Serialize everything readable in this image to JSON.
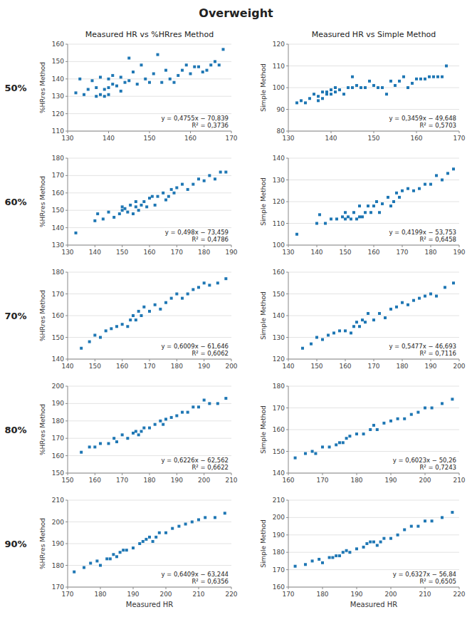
{
  "title": "Overweight",
  "row_labels": [
    "50%",
    "60%",
    "70%",
    "80%",
    "90%"
  ],
  "col_titles": [
    "Measured HR vs %HRres Method",
    "Measured HR vs Simple Method"
  ],
  "chart_data": [
    {
      "type": "scatter",
      "ylabel": "%HRres Method",
      "grid": true,
      "xlim": [
        130,
        170
      ],
      "ylim": [
        110,
        160
      ],
      "xticks": [
        130,
        140,
        150,
        160,
        170
      ],
      "yticks": [
        110,
        120,
        130,
        140,
        150,
        160
      ],
      "annotations": [
        "y = 0,4755x − 70,839",
        "R² = 0,3736"
      ],
      "slope": 0.4755,
      "intercept": -70.839,
      "x": [
        132,
        133,
        134,
        135,
        136,
        137,
        137,
        138,
        138,
        139,
        139,
        140,
        140,
        140,
        141,
        141,
        142,
        143,
        143,
        144,
        145,
        145,
        146,
        147,
        148,
        149,
        150,
        151,
        152,
        153,
        154,
        155,
        156,
        157,
        158,
        159,
        160,
        161,
        162,
        163,
        164,
        165,
        166,
        167,
        168
      ],
      "values": [
        132,
        140,
        131,
        134,
        139,
        130,
        135,
        131,
        141,
        134,
        130,
        131,
        135,
        140,
        137,
        142,
        136,
        133,
        141,
        138,
        139,
        152,
        144,
        137,
        148,
        140,
        138,
        143,
        154,
        138,
        145,
        140,
        138,
        142,
        145,
        148,
        143,
        147,
        147,
        144,
        145,
        148,
        150,
        148,
        157
      ]
    },
    {
      "type": "scatter",
      "ylabel": "Simple Method",
      "grid": true,
      "xlim": [
        130,
        170
      ],
      "ylim": [
        80,
        120
      ],
      "xticks": [
        130,
        140,
        150,
        160,
        170
      ],
      "yticks": [
        80,
        90,
        100,
        110,
        120
      ],
      "annotations": [
        "y = 0,3459x − 49,648",
        "R² = 0,5703"
      ],
      "slope": 0.3459,
      "intercept": -49.648,
      "x": [
        132,
        133,
        134,
        135,
        136,
        137,
        137,
        138,
        138,
        139,
        139,
        140,
        140,
        141,
        141,
        142,
        143,
        144,
        145,
        145,
        146,
        147,
        148,
        149,
        150,
        151,
        152,
        153,
        154,
        155,
        156,
        157,
        158,
        159,
        160,
        161,
        162,
        163,
        164,
        165,
        166,
        167
      ],
      "values": [
        93,
        94,
        93,
        95,
        97,
        94,
        96,
        95,
        98,
        98,
        97,
        97,
        99,
        98,
        100,
        99,
        97,
        100,
        100,
        105,
        101,
        100,
        100,
        103,
        101,
        100,
        100,
        97,
        103,
        101,
        103,
        105,
        100,
        102,
        104,
        104,
        104,
        105,
        105,
        105,
        105,
        110
      ]
    },
    {
      "type": "scatter",
      "ylabel": "%HRres Method",
      "grid": true,
      "xlim": [
        130,
        190
      ],
      "ylim": [
        130,
        180
      ],
      "xticks": [
        130,
        140,
        150,
        160,
        170,
        180,
        190
      ],
      "yticks": [
        130,
        140,
        150,
        160,
        170,
        180
      ],
      "annotations": [
        "y = 0,498x − 73,459",
        "R² = 0,4786"
      ],
      "slope": 0.498,
      "intercept": -73.459,
      "x": [
        133,
        140,
        141,
        143,
        145,
        147,
        149,
        150,
        150,
        151,
        152,
        153,
        154,
        155,
        155,
        156,
        157,
        158,
        159,
        160,
        161,
        162,
        163,
        165,
        166,
        167,
        168,
        169,
        170,
        172,
        174,
        176,
        178,
        180,
        182,
        184,
        186,
        188
      ],
      "values": [
        137,
        144,
        148,
        145,
        149,
        146,
        148,
        150,
        152,
        151,
        149,
        153,
        148,
        152,
        155,
        150,
        153,
        155,
        152,
        157,
        158,
        153,
        158,
        160,
        156,
        158,
        162,
        160,
        163,
        165,
        162,
        165,
        168,
        167,
        170,
        168,
        172,
        172
      ]
    },
    {
      "type": "scatter",
      "ylabel": "Simple Method",
      "grid": true,
      "xlim": [
        130,
        190
      ],
      "ylim": [
        100,
        140
      ],
      "xticks": [
        130,
        140,
        150,
        160,
        170,
        180,
        190
      ],
      "yticks": [
        100,
        110,
        120,
        130,
        140
      ],
      "annotations": [
        "y = 0,4199x − 53,753",
        "R² = 0,6458"
      ],
      "slope": 0.4199,
      "intercept": -53.753,
      "x": [
        133,
        140,
        141,
        143,
        145,
        147,
        149,
        150,
        150,
        151,
        152,
        153,
        154,
        155,
        155,
        156,
        157,
        158,
        159,
        160,
        161,
        162,
        163,
        165,
        166,
        167,
        168,
        169,
        170,
        172,
        174,
        176,
        178,
        180,
        182,
        184,
        186,
        188
      ],
      "values": [
        105,
        110,
        114,
        110,
        112,
        112,
        113,
        112,
        115,
        113,
        112,
        115,
        112,
        113,
        118,
        113,
        115,
        118,
        115,
        118,
        120,
        115,
        119,
        122,
        118,
        120,
        124,
        122,
        125,
        126,
        125,
        126,
        128,
        128,
        132,
        130,
        133,
        135
      ]
    },
    {
      "type": "scatter",
      "ylabel": "%HRres Method",
      "grid": true,
      "xlim": [
        140,
        200
      ],
      "ylim": [
        140,
        180
      ],
      "xticks": [
        140,
        150,
        160,
        170,
        180,
        190,
        200
      ],
      "yticks": [
        140,
        150,
        160,
        170,
        180
      ],
      "annotations": [
        "y = 0,6009x − 61,646",
        "R² = 0,6062"
      ],
      "slope": 0.6009,
      "intercept": -61.646,
      "x": [
        145,
        148,
        150,
        152,
        154,
        156,
        158,
        160,
        162,
        163,
        164,
        165,
        166,
        167,
        168,
        170,
        172,
        174,
        176,
        178,
        180,
        182,
        184,
        186,
        188,
        190,
        192,
        195,
        198
      ],
      "values": [
        145,
        148,
        151,
        150,
        153,
        154,
        155,
        156,
        155,
        158,
        160,
        158,
        162,
        160,
        164,
        162,
        165,
        163,
        166,
        168,
        170,
        168,
        170,
        172,
        173,
        175,
        174,
        175,
        177
      ]
    },
    {
      "type": "scatter",
      "ylabel": "Simple Method",
      "grid": true,
      "xlim": [
        140,
        200
      ],
      "ylim": [
        120,
        160
      ],
      "xticks": [
        140,
        150,
        160,
        170,
        180,
        190,
        200
      ],
      "yticks": [
        120,
        130,
        140,
        150,
        160
      ],
      "annotations": [
        "y = 0,5477x − 46,693",
        "R² = 0,7116"
      ],
      "slope": 0.5477,
      "intercept": -46.693,
      "x": [
        145,
        148,
        150,
        152,
        154,
        156,
        158,
        160,
        162,
        163,
        164,
        165,
        166,
        167,
        168,
        170,
        172,
        174,
        176,
        178,
        180,
        182,
        184,
        186,
        188,
        190,
        192,
        195,
        198
      ],
      "values": [
        125,
        127,
        130,
        129,
        131,
        132,
        133,
        133,
        132,
        135,
        137,
        135,
        138,
        137,
        141,
        138,
        141,
        139,
        143,
        144,
        146,
        145,
        147,
        148,
        149,
        150,
        149,
        153,
        155
      ]
    },
    {
      "type": "scatter",
      "ylabel": "%HRres Method",
      "grid": true,
      "xlim": [
        150,
        210
      ],
      "ylim": [
        150,
        200
      ],
      "xticks": [
        150,
        160,
        170,
        180,
        190,
        200,
        210
      ],
      "yticks": [
        150,
        160,
        170,
        180,
        190,
        200
      ],
      "annotations": [
        "y = 0,6226x − 62,562",
        "R² = 0,6622"
      ],
      "slope": 0.6226,
      "intercept": -62.562,
      "x": [
        155,
        158,
        160,
        162,
        165,
        167,
        168,
        170,
        172,
        174,
        175,
        176,
        177,
        178,
        180,
        182,
        184,
        185,
        186,
        188,
        190,
        192,
        194,
        196,
        198,
        200,
        202,
        205,
        208
      ],
      "values": [
        162,
        165,
        165,
        167,
        167,
        170,
        168,
        172,
        170,
        173,
        174,
        172,
        174,
        176,
        176,
        178,
        180,
        178,
        181,
        182,
        183,
        185,
        185,
        188,
        188,
        192,
        190,
        190,
        193
      ]
    },
    {
      "type": "scatter",
      "ylabel": "Simple Method",
      "grid": true,
      "xlim": [
        160,
        210
      ],
      "ylim": [
        140,
        180
      ],
      "xticks": [
        160,
        170,
        180,
        190,
        200,
        210
      ],
      "yticks": [
        140,
        150,
        160,
        170,
        180
      ],
      "annotations": [
        "y = 0,6023x − 50,26",
        "R² = 0,7243"
      ],
      "slope": 0.6023,
      "intercept": -50.26,
      "x": [
        162,
        165,
        167,
        168,
        170,
        172,
        174,
        175,
        176,
        177,
        178,
        180,
        182,
        184,
        185,
        186,
        188,
        190,
        192,
        194,
        196,
        198,
        200,
        202,
        205,
        208
      ],
      "values": [
        147,
        149,
        150,
        149,
        152,
        152,
        153,
        154,
        154,
        156,
        157,
        158,
        158,
        160,
        162,
        160,
        163,
        164,
        165,
        165,
        167,
        168,
        170,
        170,
        172,
        174
      ]
    },
    {
      "type": "scatter",
      "ylabel": "%HRres Method",
      "xlabel": "Measured HR",
      "grid": true,
      "xlim": [
        170,
        220
      ],
      "ylim": [
        170,
        210
      ],
      "xticks": [
        170,
        180,
        190,
        200,
        210,
        220
      ],
      "yticks": [
        170,
        180,
        190,
        200,
        210
      ],
      "annotations": [
        "y = 0,6409x − 63,244",
        "R² = 0,6356"
      ],
      "slope": 0.6409,
      "intercept": -63.244,
      "x": [
        172,
        175,
        177,
        179,
        180,
        182,
        183,
        184,
        185,
        186,
        187,
        188,
        190,
        192,
        193,
        194,
        195,
        196,
        197,
        198,
        200,
        202,
        204,
        206,
        208,
        210,
        212,
        215,
        218
      ],
      "values": [
        177,
        179,
        181,
        182,
        180,
        183,
        183,
        185,
        184,
        186,
        187,
        187,
        188,
        190,
        191,
        192,
        193,
        191,
        193,
        195,
        195,
        197,
        198,
        199,
        200,
        201,
        202,
        202,
        204
      ]
    },
    {
      "type": "scatter",
      "ylabel": "Simple Method",
      "xlabel": "Measured HR",
      "grid": true,
      "xlim": [
        170,
        220
      ],
      "ylim": [
        160,
        210
      ],
      "xticks": [
        170,
        180,
        190,
        200,
        210,
        220
      ],
      "yticks": [
        160,
        170,
        180,
        190,
        200,
        210
      ],
      "annotations": [
        "y = 0,6327x − 56,84",
        "R² = 0,6505"
      ],
      "slope": 0.6327,
      "intercept": -56.84,
      "x": [
        172,
        175,
        177,
        179,
        180,
        182,
        183,
        184,
        185,
        186,
        187,
        188,
        190,
        192,
        193,
        194,
        195,
        196,
        197,
        198,
        200,
        202,
        204,
        206,
        208,
        210,
        212,
        215,
        218
      ],
      "values": [
        172,
        173,
        175,
        176,
        174,
        177,
        177,
        178,
        178,
        180,
        181,
        180,
        182,
        183,
        185,
        186,
        186,
        184,
        186,
        188,
        188,
        190,
        193,
        195,
        195,
        198,
        198,
        200,
        203
      ]
    }
  ]
}
